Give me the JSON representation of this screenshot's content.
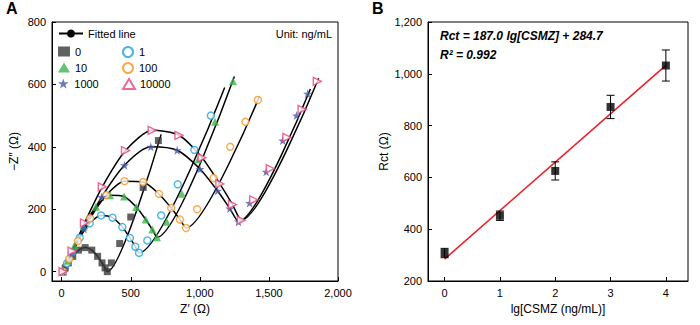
{
  "chart_data": [
    {
      "type": "scatter",
      "panel_label": "A",
      "x_label": "Z′ (Ω)",
      "y_label": "−Z″ (Ω)",
      "annotation": "Unit: ng/mL",
      "xlim": [
        -70,
        2000
      ],
      "xticks": [
        0,
        500,
        1000,
        1500,
        2000
      ],
      "ylim": [
        -30,
        800
      ],
      "yticks": [
        0,
        200,
        400,
        600,
        800
      ],
      "grid": false,
      "legend": "upper left",
      "fitted_lines": {
        "name": "Fitted line",
        "color": "#000000",
        "line_style": "solid",
        "curves": [
          {
            "x": [
              10,
              26,
              48,
              80,
              122,
              170,
              218,
              260,
              292,
              314,
              330,
              720
            ],
            "y": [
              0,
              12,
              28,
              49,
              69,
              77,
              69,
              49,
              28,
              12,
              0,
              440
            ]
          },
          {
            "x": [
              10,
              38,
              76,
              131,
              203,
              285,
              368,
              439,
              494,
              533,
              560,
              1180
            ],
            "y": [
              0,
              26,
              62,
              109,
              155,
              180,
              173,
              143,
              108,
              80,
              60,
              590
            ]
          },
          {
            "x": [
              10,
              44,
              92,
              160,
              248,
              350,
              452,
              540,
              608,
              656,
              690,
              1250
            ],
            "y": [
              0,
              36,
              83,
              145,
              208,
              245,
              241,
              207,
              167,
              135,
              110,
              625
            ]
          },
          {
            "x": [
              10,
              55,
              117,
              206,
              322,
              455,
              589,
              704,
              793,
              856,
              900,
              1430
            ],
            "y": [
              0,
              41,
              98,
              171,
              245,
              290,
              287,
              249,
              204,
              167,
              140,
              560
            ]
          },
          {
            "x": [
              10,
              74,
              162,
              289,
              455,
              645,
              836,
              1001,
              1128,
              1217,
              1280,
              1800
            ],
            "y": [
              0,
              58,
              137,
              239,
              341,
              400,
              389,
              329,
              259,
              202,
              160,
              585
            ]
          },
          {
            "x": [
              10,
              75,
              165,
              294,
              462,
              655,
              849,
              1016,
              1145,
              1236,
              1300,
              1860
            ],
            "y": [
              0,
              66,
              156,
              272,
              388,
              453,
              437,
              365,
              281,
              215,
              165,
              620
            ]
          }
        ]
      },
      "series": [
        {
          "name": "0",
          "color": "#3a3a3a",
          "marker": "square",
          "x": [
            10,
            26,
            48,
            80,
            122,
            170,
            218,
            260,
            292,
            314,
            330,
            360,
            420,
            500,
            590,
            700
          ],
          "y": [
            0,
            12,
            28,
            49,
            69,
            77,
            69,
            49,
            28,
            12,
            0,
            28,
            90,
            175,
            270,
            420
          ]
        },
        {
          "name": "1",
          "color": "#1ba1dc",
          "marker": "open circle",
          "x": [
            10,
            38,
            76,
            131,
            203,
            285,
            368,
            439,
            494,
            533,
            560,
            620,
            720,
            840,
            960,
            1080
          ],
          "y": [
            0,
            26,
            62,
            109,
            155,
            180,
            173,
            143,
            108,
            80,
            60,
            100,
            180,
            280,
            390,
            500
          ]
        },
        {
          "name": "10",
          "color": "#3cb44b",
          "marker": "triangle",
          "x": [
            10,
            44,
            92,
            160,
            248,
            350,
            452,
            540,
            608,
            656,
            690,
            760,
            870,
            990,
            1110,
            1240
          ],
          "y": [
            0,
            36,
            83,
            145,
            208,
            245,
            241,
            207,
            167,
            135,
            110,
            160,
            250,
            360,
            480,
            610
          ]
        },
        {
          "name": "100",
          "color": "#f7941d",
          "marker": "open circle",
          "x": [
            10,
            55,
            117,
            206,
            322,
            455,
            589,
            704,
            793,
            856,
            900,
            980,
            1100,
            1220,
            1330,
            1420
          ],
          "y": [
            0,
            41,
            98,
            171,
            245,
            290,
            287,
            249,
            204,
            167,
            140,
            200,
            300,
            400,
            480,
            550
          ]
        },
        {
          "name": "1000",
          "color": "#4a5aa8",
          "marker": "star",
          "x": [
            10,
            74,
            162,
            289,
            455,
            645,
            836,
            1001,
            1128,
            1217,
            1280,
            1360,
            1480,
            1600,
            1700,
            1780
          ],
          "y": [
            0,
            58,
            137,
            239,
            341,
            400,
            389,
            329,
            259,
            202,
            160,
            220,
            320,
            420,
            500,
            570
          ]
        },
        {
          "name": "10000",
          "color": "#e8457c",
          "marker": "open triangle right",
          "x": [
            10,
            75,
            165,
            294,
            462,
            655,
            849,
            1016,
            1145,
            1236,
            1300,
            1390,
            1510,
            1630,
            1740,
            1850
          ],
          "y": [
            0,
            66,
            156,
            272,
            388,
            453,
            437,
            365,
            281,
            215,
            165,
            230,
            330,
            430,
            520,
            610
          ]
        }
      ]
    },
    {
      "type": "scatter",
      "panel_label": "B",
      "x_label": "lg[CSMZ (ng/mL)]",
      "y_label": "Rct (Ω)",
      "annotations": [
        "Rct = 187.0 lg[CSMZ] + 284.7",
        "R² = 0.992"
      ],
      "x": [
        0,
        1,
        2,
        3,
        4
      ],
      "values": [
        308,
        452,
        625,
        872,
        1032
      ],
      "errors": [
        18,
        18,
        35,
        45,
        60
      ],
      "color": "#000000",
      "marker": "square",
      "fit_line": {
        "color": "#e8202a",
        "line_style": "solid",
        "x": [
          0,
          4
        ],
        "y": [
          284.7,
          1032.7
        ]
      },
      "xlim": [
        -0.3,
        4.4
      ],
      "xticks": [
        0,
        1,
        2,
        3,
        4
      ],
      "ylim": [
        200,
        1200
      ],
      "yticks": [
        200,
        400,
        600,
        800,
        1000,
        1200
      ],
      "grid": false
    }
  ]
}
